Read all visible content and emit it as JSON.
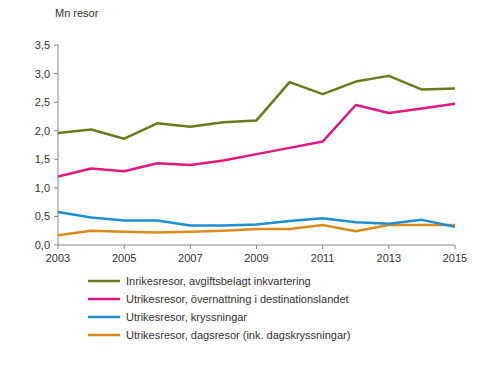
{
  "chart_data": {
    "type": "line",
    "y_label": "Mn resor",
    "x": [
      2003,
      2004,
      2005,
      2006,
      2007,
      2008,
      2009,
      2010,
      2011,
      2012,
      2013,
      2014,
      2015
    ],
    "xlim": [
      2003,
      2015
    ],
    "xticks": [
      2003,
      2005,
      2007,
      2009,
      2011,
      2013,
      2015
    ],
    "ylim": [
      0,
      3.5
    ],
    "yticks": [
      {
        "value": 0,
        "label": "0,0"
      },
      {
        "value": 0.5,
        "label": "0,5"
      },
      {
        "value": 1,
        "label": "1,0"
      },
      {
        "value": 1.5,
        "label": "1,5"
      },
      {
        "value": 2,
        "label": "2,0"
      },
      {
        "value": 2.5,
        "label": "2,5"
      },
      {
        "value": 3,
        "label": "3,0"
      },
      {
        "value": 3.5,
        "label": "3,5"
      }
    ],
    "grid": false,
    "legend": "bottom",
    "series": [
      {
        "name": "Inrikesresor, avgiftsbelagt inkvartering",
        "color": "#6b7a1f",
        "values": [
          1.96,
          2.02,
          1.86,
          2.13,
          2.07,
          2.15,
          2.18,
          2.85,
          2.64,
          2.86,
          2.96,
          2.72,
          2.74
        ]
      },
      {
        "name": "Utrikesresor, övernattning i destinationslandet",
        "color": "#e2187f",
        "values": [
          1.2,
          1.34,
          1.29,
          1.43,
          1.4,
          1.48,
          1.59,
          1.7,
          1.81,
          2.45,
          2.31,
          2.39,
          2.47
        ]
      },
      {
        "name": "Utrikesresor, kryssningar",
        "color": "#1e8fd2",
        "values": [
          0.58,
          0.48,
          0.43,
          0.43,
          0.34,
          0.34,
          0.36,
          0.42,
          0.47,
          0.4,
          0.37,
          0.44,
          0.32
        ]
      },
      {
        "name": "Utrikesresor, dagsresor (ink. dagskryssningar)",
        "color": "#dc8b1c",
        "values": [
          0.17,
          0.25,
          0.23,
          0.22,
          0.23,
          0.25,
          0.28,
          0.28,
          0.35,
          0.24,
          0.35,
          0.35,
          0.35
        ]
      }
    ]
  }
}
